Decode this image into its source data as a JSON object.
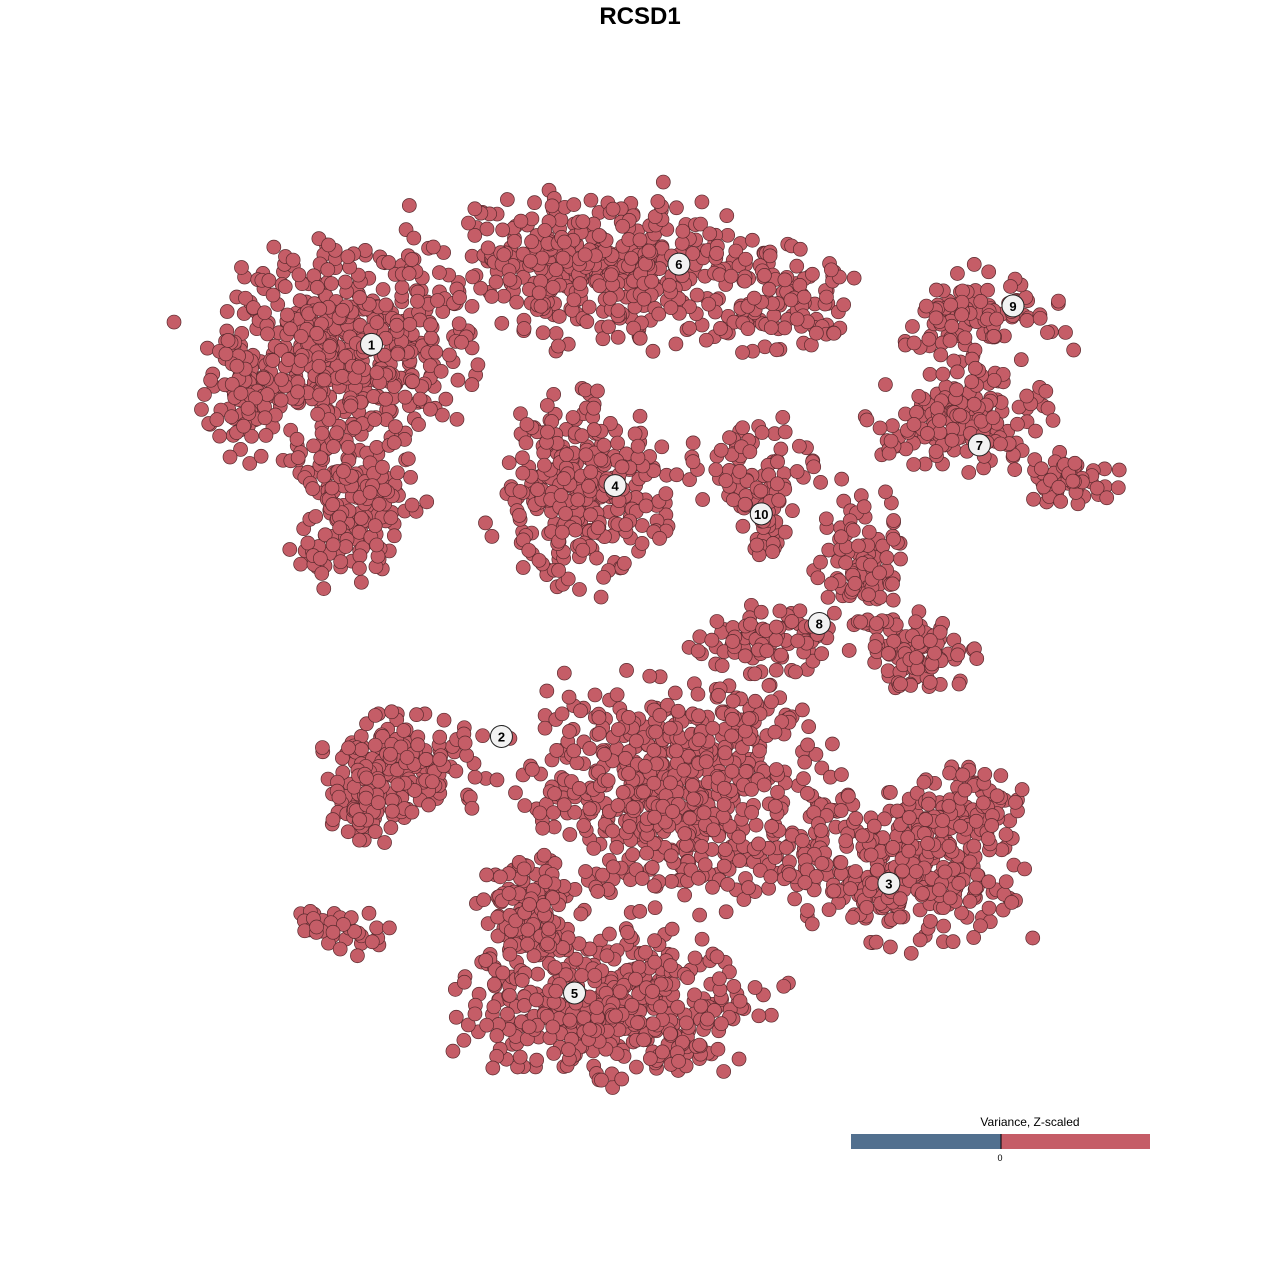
{
  "chart_data": {
    "type": "scatter",
    "title": "RCSD1",
    "xlim": [
      -40,
      40
    ],
    "ylim": [
      -40,
      40
    ],
    "grid": false,
    "axes_visible": false,
    "point_color": "#c55d67",
    "point_stroke": "#5a2a2e",
    "label_fill": "#f2f2f2",
    "clusters": [
      {
        "label": "1",
        "center": [
          -25.3,
          25.9
        ],
        "blobs": [
          [
            -28,
            25.4,
            10.3,
            8.8,
            520
          ],
          [
            -27.2,
            12.1,
            5.2,
            7.1,
            170
          ],
          [
            -36.6,
            21,
            3,
            5.3,
            60
          ]
        ]
      },
      {
        "label": "6",
        "center": [
          1.2,
          33.0
        ],
        "blobs": [
          [
            -5.6,
            32.5,
            14.7,
            6.2,
            430
          ],
          [
            9.9,
            29.8,
            6,
            4.4,
            110
          ]
        ]
      },
      {
        "label": "9",
        "center": [
          30.0,
          29.3
        ],
        "blobs": [
          [
            27.2,
            28.3,
            7.8,
            3.5,
            110
          ]
        ]
      },
      {
        "label": "4",
        "center": [
          -4.3,
          13.4
        ],
        "blobs": [
          [
            -7.3,
            13,
            6.9,
            7.5,
            300
          ]
        ]
      },
      {
        "label": "10",
        "center": [
          8.3,
          10.9
        ],
        "blobs": [
          [
            7.3,
            14.8,
            5.6,
            3.5,
            70
          ],
          [
            9,
            10.4,
            2.2,
            3,
            35
          ]
        ]
      },
      {
        "label": "7",
        "center": [
          27.1,
          17.0
        ],
        "blobs": [
          [
            25.4,
            19.2,
            7.8,
            4,
            160
          ],
          [
            34.9,
            13.9,
            4.3,
            2.2,
            60
          ]
        ]
      },
      {
        "label": "8",
        "center": [
          13.3,
          1.2
        ],
        "blobs": [
          [
            16.8,
            6.8,
            3.4,
            6.2,
            100
          ],
          [
            22,
            -1.2,
            5.2,
            3.1,
            100
          ],
          [
            9,
            -0.3,
            6,
            2.7,
            90
          ]
        ]
      },
      {
        "label": "2",
        "center": [
          -14.1,
          -8.8
        ],
        "blobs": [
          [
            -22.8,
            -10.9,
            6.9,
            4.4,
            160
          ],
          [
            -25.4,
            -15.3,
            3.9,
            2.7,
            60
          ],
          [
            -28,
            -25.9,
            3.9,
            2.2,
            35
          ]
        ]
      },
      {
        "label": "3",
        "center": [
          19.3,
          -21.8
        ],
        "blobs": [
          [
            1.3,
            -13.5,
            12,
            9.7,
            650
          ],
          [
            20.3,
            -20.6,
            9.5,
            6.2,
            320
          ],
          [
            25.4,
            -15.4,
            5.2,
            3.5,
            100
          ]
        ]
      },
      {
        "label": "5",
        "center": [
          -7.8,
          -31.5
        ],
        "blobs": [
          [
            -4.7,
            -33,
            12,
            6.2,
            450
          ],
          [
            -11.6,
            -25,
            4.3,
            6.2,
            140
          ]
        ]
      }
    ],
    "legend": {
      "title": "Variance, Z-scaled",
      "tick_label": "0",
      "colors": [
        "#52708f",
        "#c55d67"
      ],
      "placement": "bottom-right"
    }
  }
}
